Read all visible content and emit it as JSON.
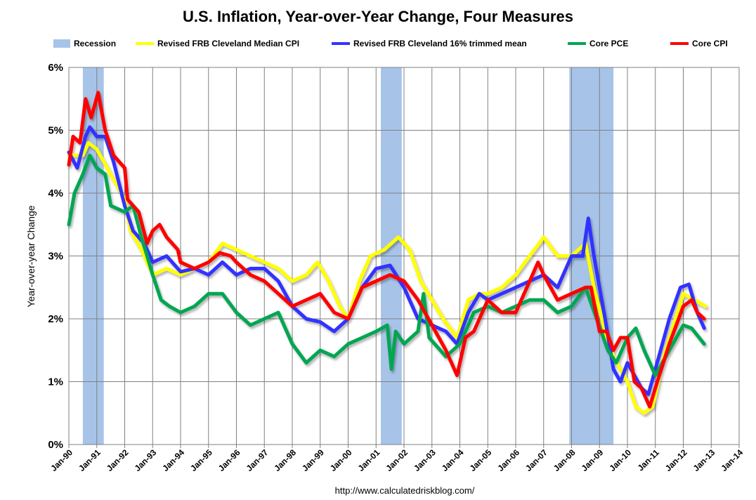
{
  "chart_data": {
    "type": "line",
    "title": "U.S. Inflation, Year-over-Year Change, Four Measures",
    "ylabel": "Year-over-year Change",
    "xlabel": "",
    "source": "http://www.calculatedriskblog.com/",
    "ylim": [
      0,
      6
    ],
    "yticks": [
      0,
      1,
      2,
      3,
      4,
      5,
      6
    ],
    "ytick_labels": [
      "0%",
      "1%",
      "2%",
      "3%",
      "4%",
      "5%",
      "6%"
    ],
    "xlim": [
      1990,
      2014
    ],
    "xtick_labels": [
      "Jan-90",
      "Jan-91",
      "Jan-92",
      "Jan-93",
      "Jan-94",
      "Jan-95",
      "Jan-96",
      "Jan-97",
      "Jan-98",
      "Jan-99",
      "Jan-00",
      "Jan-01",
      "Jan-02",
      "Jan-03",
      "Jan-04",
      "Jan-05",
      "Jan-06",
      "Jan-07",
      "Jan-08",
      "Jan-09",
      "Jan-10",
      "Jan-11",
      "Jan-12",
      "Jan-13",
      "Jan-14"
    ],
    "grid": true,
    "legend_placement": "top",
    "recession_label": "Recession",
    "recession_color": "#a7c4e8",
    "recessions": [
      [
        1990.5,
        1991.25
      ],
      [
        2001.17,
        2001.92
      ],
      [
        2007.92,
        2009.5
      ]
    ],
    "series": [
      {
        "name": "Revised FRB Cleveland Median CPI",
        "color": "#ffff00",
        "x": [
          1990.0,
          1990.5,
          1990.7,
          1991.0,
          1991.5,
          1992.0,
          1992.2,
          1992.6,
          1993.0,
          1993.5,
          1994.0,
          1994.5,
          1995.0,
          1995.5,
          1996.0,
          1996.5,
          1997.0,
          1997.5,
          1998.0,
          1998.5,
          1998.9,
          1999.3,
          1999.7,
          2000.0,
          2000.4,
          2000.8,
          2001.3,
          2001.8,
          2002.2,
          2002.6,
          2003.0,
          2003.4,
          2003.9,
          2004.3,
          2004.7,
          2005.0,
          2005.5,
          2006.0,
          2006.5,
          2007.0,
          2007.5,
          2008.0,
          2008.5,
          2008.8,
          2009.2,
          2009.5,
          2010.0,
          2010.3,
          2010.6,
          2010.9,
          2011.3,
          2011.8,
          2012.0,
          2012.4,
          2012.8
        ],
        "y": [
          4.6,
          4.6,
          4.8,
          4.7,
          4.3,
          3.9,
          3.4,
          3.1,
          2.7,
          2.8,
          2.7,
          2.8,
          2.9,
          3.2,
          3.1,
          3.0,
          2.9,
          2.8,
          2.6,
          2.7,
          2.9,
          2.6,
          2.2,
          2.0,
          2.6,
          3.0,
          3.1,
          3.3,
          3.1,
          2.6,
          2.3,
          2.0,
          1.7,
          2.3,
          2.4,
          2.4,
          2.5,
          2.7,
          3.0,
          3.3,
          3.0,
          3.0,
          3.2,
          2.5,
          1.8,
          1.4,
          1.0,
          0.6,
          0.5,
          0.6,
          1.4,
          2.1,
          2.4,
          2.3,
          2.2
        ]
      },
      {
        "name": "Revised FRB Cleveland 16% trimmed mean",
        "color": "#3333ff",
        "x": [
          1990.0,
          1990.3,
          1990.6,
          1990.75,
          1991.0,
          1991.3,
          1991.6,
          1992.0,
          1992.3,
          1992.7,
          1993.0,
          1993.5,
          1994.0,
          1994.5,
          1995.0,
          1995.5,
          1996.0,
          1996.5,
          1997.0,
          1997.5,
          1998.0,
          1998.5,
          1999.0,
          1999.5,
          2000.0,
          2000.5,
          2001.0,
          2001.5,
          2002.0,
          2002.5,
          2003.0,
          2003.5,
          2003.9,
          2004.3,
          2004.7,
          2005.0,
          2005.5,
          2006.0,
          2006.5,
          2007.0,
          2007.5,
          2008.0,
          2008.4,
          2008.6,
          2008.8,
          2009.2,
          2009.5,
          2009.75,
          2010.0,
          2010.5,
          2010.75,
          2011.0,
          2011.5,
          2011.9,
          2012.2,
          2012.5,
          2012.75
        ],
        "y": [
          4.65,
          4.4,
          4.9,
          5.05,
          4.9,
          4.9,
          4.5,
          3.8,
          3.4,
          3.2,
          2.9,
          3.0,
          2.75,
          2.8,
          2.7,
          2.9,
          2.7,
          2.8,
          2.8,
          2.6,
          2.2,
          2.0,
          1.95,
          1.8,
          2.0,
          2.5,
          2.8,
          2.85,
          2.5,
          2.0,
          1.9,
          1.8,
          1.6,
          2.1,
          2.4,
          2.3,
          2.4,
          2.5,
          2.6,
          2.7,
          2.5,
          3.0,
          3.0,
          3.6,
          3.0,
          2.0,
          1.2,
          1.0,
          1.3,
          0.9,
          0.8,
          1.2,
          2.0,
          2.5,
          2.55,
          2.1,
          1.85
        ]
      },
      {
        "name": "Core PCE",
        "color": "#00a651",
        "x": [
          1990.0,
          1990.2,
          1990.5,
          1990.75,
          1991.0,
          1991.3,
          1991.5,
          1992.0,
          1992.3,
          1992.6,
          1993.0,
          1993.3,
          1993.6,
          1994.0,
          1994.5,
          1995.0,
          1995.5,
          1996.0,
          1996.5,
          1997.0,
          1997.5,
          1998.0,
          1998.5,
          1999.0,
          1999.5,
          2000.0,
          2000.5,
          2001.0,
          2001.4,
          2001.55,
          2001.7,
          2002.0,
          2002.5,
          2002.7,
          2002.9,
          2003.5,
          2004.0,
          2004.5,
          2005.0,
          2005.5,
          2006.0,
          2006.5,
          2007.0,
          2007.5,
          2008.0,
          2008.5,
          2008.9,
          2009.3,
          2009.6,
          2010.0,
          2010.3,
          2010.6,
          2011.0,
          2011.5,
          2012.0,
          2012.3,
          2012.75
        ],
        "y": [
          3.5,
          4.0,
          4.3,
          4.6,
          4.4,
          4.3,
          3.8,
          3.7,
          3.8,
          3.3,
          2.7,
          2.3,
          2.2,
          2.1,
          2.2,
          2.4,
          2.4,
          2.1,
          1.9,
          2.0,
          2.1,
          1.6,
          1.3,
          1.5,
          1.4,
          1.6,
          1.7,
          1.8,
          1.9,
          1.2,
          1.8,
          1.6,
          1.8,
          2.4,
          1.7,
          1.4,
          1.6,
          2.1,
          2.2,
          2.1,
          2.2,
          2.3,
          2.3,
          2.1,
          2.2,
          2.5,
          2.0,
          1.5,
          1.3,
          1.7,
          1.85,
          1.5,
          1.1,
          1.5,
          1.9,
          1.85,
          1.6
        ]
      },
      {
        "name": "Core CPI",
        "color": "#ff0000",
        "x": [
          1990.0,
          1990.15,
          1990.4,
          1990.6,
          1990.8,
          1991.05,
          1991.3,
          1991.6,
          1992.0,
          1992.1,
          1992.5,
          1992.8,
          1993.0,
          1993.25,
          1993.5,
          1993.9,
          1994.0,
          1994.5,
          1995.0,
          1995.4,
          1995.8,
          1996.0,
          1996.5,
          1997.0,
          1997.5,
          1998.0,
          1998.5,
          1999.0,
          1999.5,
          2000.0,
          2000.5,
          2001.0,
          2001.5,
          2002.0,
          2002.5,
          2003.0,
          2003.5,
          2003.9,
          2004.2,
          2004.5,
          2005.0,
          2005.5,
          2006.0,
          2006.5,
          2006.8,
          2007.0,
          2007.5,
          2008.0,
          2008.5,
          2008.7,
          2009.0,
          2009.25,
          2009.5,
          2009.75,
          2010.0,
          2010.25,
          2010.5,
          2010.8,
          2011.0,
          2011.5,
          2012.0,
          2012.3,
          2012.5,
          2012.75
        ],
        "y": [
          4.45,
          4.9,
          4.8,
          5.5,
          5.2,
          5.6,
          5.0,
          4.6,
          4.4,
          3.9,
          3.7,
          3.2,
          3.4,
          3.5,
          3.3,
          3.1,
          2.9,
          2.8,
          2.9,
          3.05,
          3.0,
          2.9,
          2.7,
          2.6,
          2.4,
          2.2,
          2.3,
          2.4,
          2.1,
          2.0,
          2.5,
          2.6,
          2.7,
          2.6,
          2.3,
          1.9,
          1.5,
          1.1,
          1.7,
          1.8,
          2.3,
          2.1,
          2.1,
          2.6,
          2.9,
          2.7,
          2.3,
          2.4,
          2.5,
          2.5,
          1.8,
          1.8,
          1.5,
          1.7,
          1.7,
          1.0,
          0.9,
          0.6,
          0.9,
          1.6,
          2.2,
          2.3,
          2.1,
          2.0
        ]
      }
    ]
  }
}
